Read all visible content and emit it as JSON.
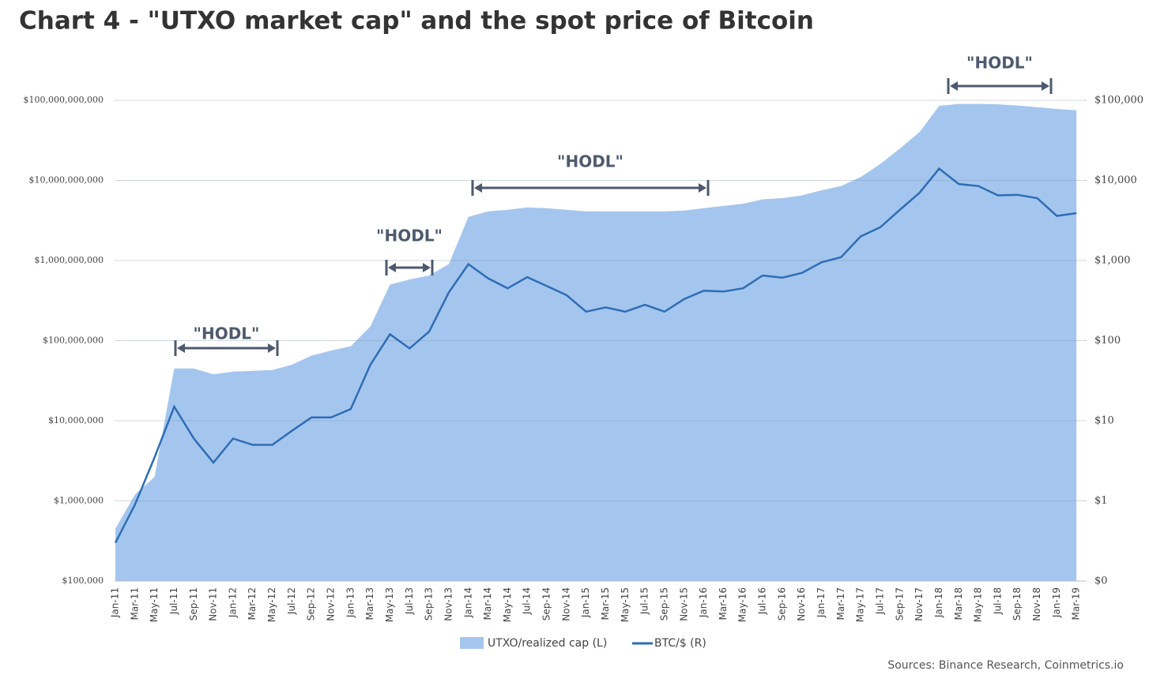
{
  "chart_data": {
    "type": "area-line",
    "title": "Chart 4 - \"UTXO market cap\" and the spot price of Bitcoin",
    "source": "Sources: Binance Research, Coinmetrics.io",
    "categories": [
      "Jan-11",
      "Mar-11",
      "May-11",
      "Jul-11",
      "Sep-11",
      "Nov-11",
      "Jan-12",
      "Mar-12",
      "May-12",
      "Jul-12",
      "Sep-12",
      "Nov-12",
      "Jan-13",
      "Mar-13",
      "May-13",
      "Jul-13",
      "Sep-13",
      "Nov-13",
      "Jan-14",
      "Mar-14",
      "May-14",
      "Jul-14",
      "Sep-14",
      "Nov-14",
      "Jan-15",
      "Mar-15",
      "May-15",
      "Jul-15",
      "Sep-15",
      "Nov-15",
      "Jan-16",
      "Mar-16",
      "May-16",
      "Jul-16",
      "Sep-16",
      "Nov-16",
      "Jan-17",
      "Mar-17",
      "May-17",
      "Jul-17",
      "Sep-17",
      "Nov-17",
      "Jan-18",
      "Mar-18",
      "May-18",
      "Jul-18",
      "Sep-18",
      "Nov-18",
      "Jan-19",
      "Mar-19"
    ],
    "series": [
      {
        "name": "UTXO/realized cap (L)",
        "color": "#a4c6ee",
        "axis": "y",
        "values": [
          450000,
          1200000,
          2000000,
          45000000,
          45000000,
          38000000,
          41000000,
          42000000,
          43000000,
          50000000,
          65000000,
          75000000,
          85000000,
          150000000,
          500000000,
          580000000,
          650000000,
          900000000,
          3500000000,
          4100000000,
          4300000000,
          4600000000,
          4500000000,
          4300000000,
          4100000000,
          4100000000,
          4100000000,
          4100000000,
          4100000000,
          4200000000,
          4500000000,
          4800000000,
          5100000000,
          5800000000,
          6000000000,
          6500000000,
          7500000000,
          8500000000,
          11000000000,
          16000000000,
          25000000000,
          40000000000,
          85000000000,
          90000000000,
          90000000000,
          89000000000,
          86000000000,
          82000000000,
          78000000000,
          75000000000
        ]
      },
      {
        "name": "BTC/$ (R)",
        "color": "#2e6db5",
        "axis": "y2",
        "values": [
          0.3,
          0.9,
          3.5,
          15,
          6,
          3,
          6,
          5,
          5,
          7.5,
          11,
          11,
          14,
          50,
          120,
          80,
          130,
          400,
          900,
          600,
          450,
          620,
          480,
          370,
          230,
          260,
          230,
          280,
          230,
          330,
          420,
          410,
          450,
          650,
          610,
          700,
          950,
          1100,
          2000,
          2600,
          4300,
          7000,
          14000,
          9000,
          8500,
          6500,
          6600,
          6000,
          3600,
          3900
        ]
      }
    ],
    "log_scale": true,
    "grid": true,
    "legend": "bottom",
    "ylim": [
      100000,
      100000000000
    ],
    "yticks": [
      {
        "value": 100000,
        "label": "$100,000"
      },
      {
        "value": 1000000,
        "label": "$1,000,000"
      },
      {
        "value": 10000000,
        "label": "$10,000,000"
      },
      {
        "value": 100000000,
        "label": "$100,000,000"
      },
      {
        "value": 1000000000,
        "label": "$1,000,000,000"
      },
      {
        "value": 10000000000,
        "label": "$10,000,000,000"
      },
      {
        "value": 100000000000,
        "label": "$100,000,000,000"
      }
    ],
    "y2lim": [
      0.1,
      100000
    ],
    "y2ticks": [
      {
        "value": 0.1,
        "label": "$0"
      },
      {
        "value": 1,
        "label": "$1"
      },
      {
        "value": 10,
        "label": "$10"
      },
      {
        "value": 100,
        "label": "$100"
      },
      {
        "value": 1000,
        "label": "$1,000"
      },
      {
        "value": 10000,
        "label": "$10,000"
      },
      {
        "value": 100000,
        "label": "$100,000"
      }
    ],
    "annotations": [
      "\"HODL\"",
      "\"HODL\"",
      "\"HODL\"",
      "\"HODL\""
    ]
  }
}
